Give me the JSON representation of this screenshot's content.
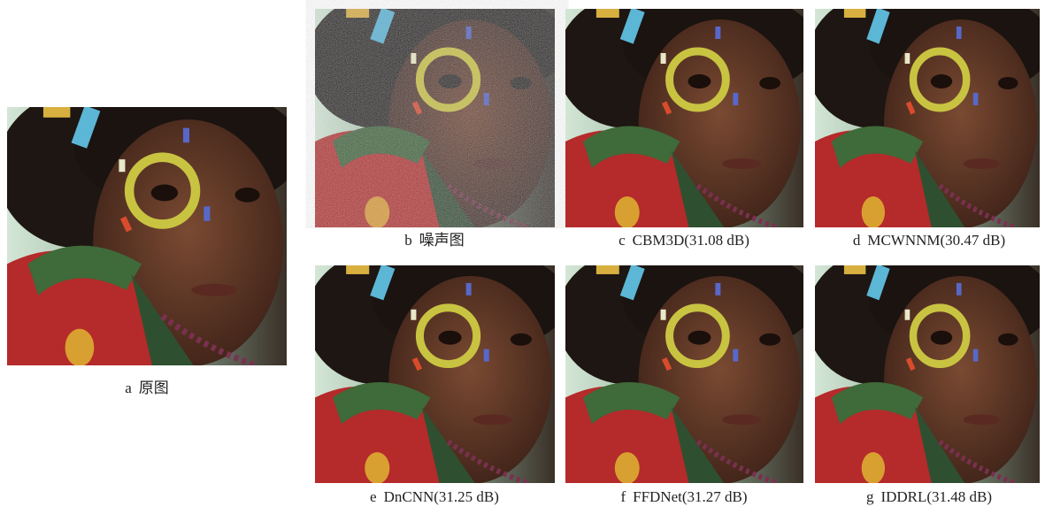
{
  "panels": [
    {
      "label": "a",
      "caption": "原图"
    },
    {
      "label": "b",
      "caption": "噪声图"
    },
    {
      "label": "c",
      "caption": "CBM3D(31.08 dB)"
    },
    {
      "label": "d",
      "caption": "MCWNNM(30.47 dB)"
    },
    {
      "label": "e",
      "caption": "DnCNN(31.25 dB)"
    },
    {
      "label": "f",
      "caption": "FFDNet(31.27 dB)"
    },
    {
      "label": "g",
      "caption": "IDDRL(31.48 dB)"
    }
  ]
}
